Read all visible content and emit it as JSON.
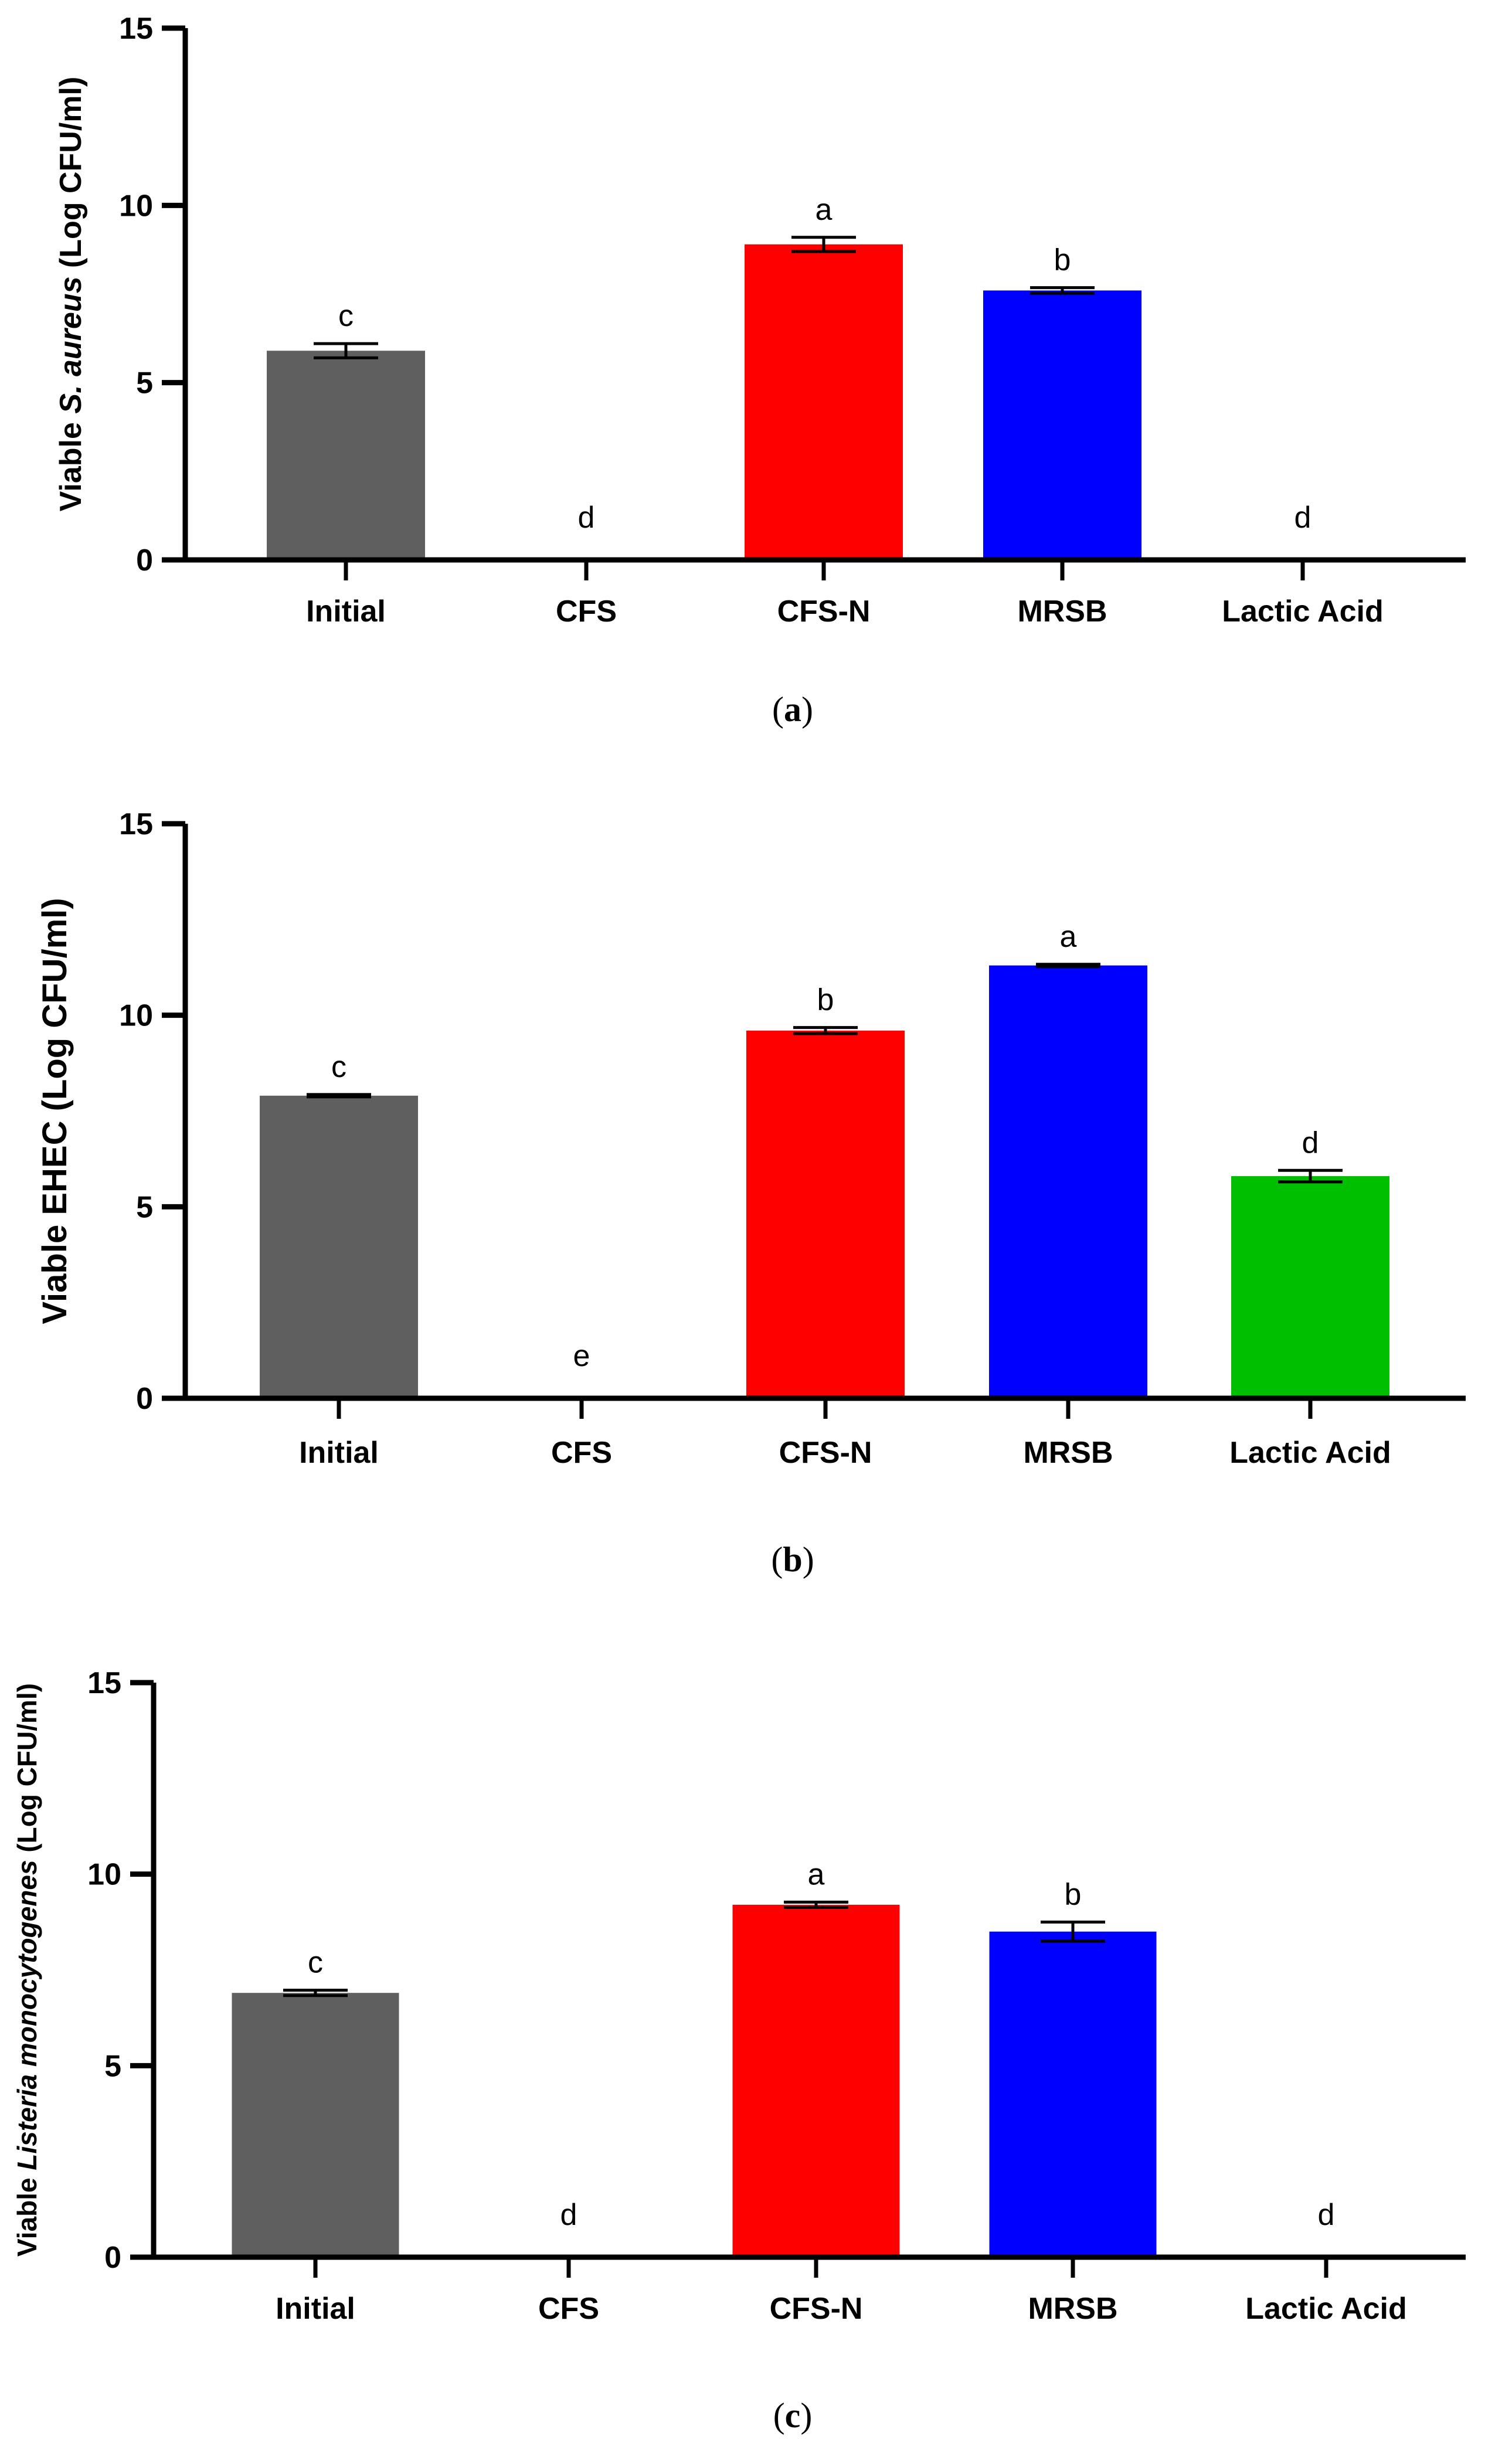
{
  "chart_data": [
    {
      "type": "bar",
      "panel": "a",
      "categories": [
        "Initial",
        "CFS",
        "CFS-N",
        "MRSB",
        "Lactic Acid"
      ],
      "values": [
        5.9,
        0,
        8.9,
        7.6,
        0
      ],
      "errors": [
        0.2,
        0,
        0.2,
        0.08,
        0
      ],
      "letters": [
        "c",
        "d",
        "a",
        "b",
        "d"
      ],
      "colors": [
        "#5f5f5f",
        "#5f5f5f",
        "#ff0000",
        "#0000ff",
        "#00bf00"
      ],
      "ylabel_prefix": "Viable ",
      "ylabel_italic": "S. aureus",
      "ylabel_suffix": " (Log CFU/ml)",
      "ylim": [
        0,
        15
      ],
      "yticks": [
        0,
        5,
        10,
        15
      ]
    },
    {
      "type": "bar",
      "panel": "b",
      "categories": [
        "Initial",
        "CFS",
        "CFS-N",
        "MRSB",
        "Lactic Acid"
      ],
      "values": [
        7.9,
        0,
        9.6,
        11.3,
        5.8
      ],
      "errors": [
        0.03,
        0,
        0.08,
        0.03,
        0.15
      ],
      "letters": [
        "c",
        "e",
        "b",
        "a",
        "d"
      ],
      "colors": [
        "#5f5f5f",
        "#5f5f5f",
        "#ff0000",
        "#0000ff",
        "#00bf00"
      ],
      "ylabel_prefix": "Viable EHEC (Log CFU/ml)",
      "ylabel_italic": "",
      "ylabel_suffix": "",
      "ylim": [
        0,
        15
      ],
      "yticks": [
        0,
        5,
        10,
        15
      ]
    },
    {
      "type": "bar",
      "panel": "c",
      "categories": [
        "Initial",
        "CFS",
        "CFS-N",
        "MRSB",
        "Lactic Acid"
      ],
      "values": [
        6.9,
        0,
        9.2,
        8.5,
        0
      ],
      "errors": [
        0.07,
        0,
        0.07,
        0.25,
        0
      ],
      "letters": [
        "c",
        "d",
        "a",
        "b",
        "d"
      ],
      "colors": [
        "#5f5f5f",
        "#5f5f5f",
        "#ff0000",
        "#0000ff",
        "#00bf00"
      ],
      "ylabel_prefix": "Viable ",
      "ylabel_italic": "Listeria monocytogenes",
      "ylabel_suffix": "  (Log CFU/ml)",
      "ylim": [
        0,
        15
      ],
      "yticks": [
        0,
        5,
        10,
        15
      ]
    }
  ],
  "panel_labels": [
    {
      "open": "(",
      "letter": "a",
      "close": ")"
    },
    {
      "open": "(",
      "letter": "b",
      "close": ")"
    },
    {
      "open": "(",
      "letter": "c",
      "close": ")"
    }
  ]
}
